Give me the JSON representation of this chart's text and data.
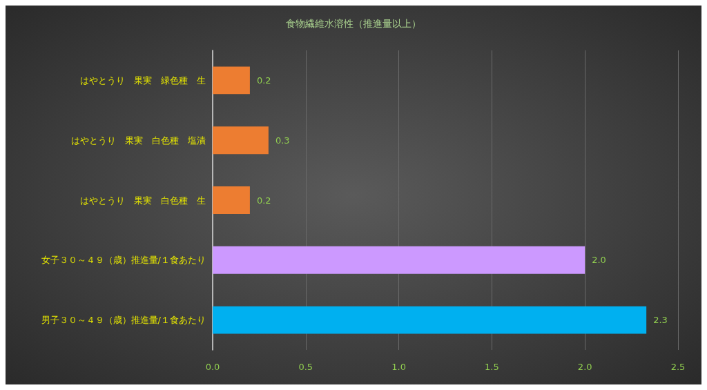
{
  "chart_data": {
    "type": "bar",
    "orientation": "horizontal",
    "title": "食物繊維水溶性（推進量以上）",
    "categories": [
      "はやとうり　果実　緑色種　生",
      "はやとうり　果実　白色種　塩漬",
      "はやとうり　果実　白色種　生",
      "女子３０～４９（歳）推進量/１食あたり",
      "男子３０～４９（歳）推進量/１食あたり"
    ],
    "values": [
      0.2,
      0.3,
      0.2,
      2.0,
      2.33
    ],
    "colors": [
      "#ed7d31",
      "#ed7d31",
      "#ed7d31",
      "#cc99ff",
      "#00b0f0"
    ],
    "value_labels": [
      "0.2",
      "0.3",
      "0.2",
      "2.0",
      "2.3"
    ],
    "xlim": [
      0,
      2.5
    ],
    "xticks": [
      {
        "value": 0,
        "label": "0.0"
      },
      {
        "value": 0.5,
        "label": "0.5"
      },
      {
        "value": 1,
        "label": "1.0"
      },
      {
        "value": 1.5,
        "label": "1.5"
      },
      {
        "value": 2,
        "label": "2.0"
      },
      {
        "value": 2.5,
        "label": "2.5"
      }
    ],
    "grid": "x"
  }
}
